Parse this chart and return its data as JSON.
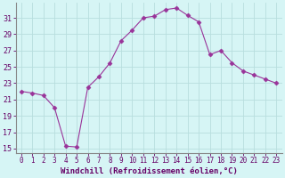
{
  "x": [
    0,
    1,
    2,
    3,
    4,
    5,
    6,
    7,
    8,
    9,
    10,
    11,
    12,
    13,
    14,
    15,
    16,
    17,
    18,
    19,
    20,
    21,
    22,
    23
  ],
  "y": [
    22.0,
    21.8,
    21.5,
    20.0,
    15.3,
    15.2,
    22.5,
    23.8,
    25.5,
    28.2,
    29.5,
    31.0,
    31.2,
    32.0,
    32.2,
    31.3,
    30.5,
    26.5,
    27.0,
    25.5,
    24.5,
    24.0,
    23.5,
    23.0
  ],
  "line_color": "#993399",
  "marker": "D",
  "marker_size": 2.5,
  "bg_color": "#d6f5f5",
  "grid_color": "#b8dede",
  "xlabel": "Windchill (Refroidissement éolien,°C)",
  "xlim": [
    -0.5,
    23.5
  ],
  "ylim": [
    14.5,
    32.8
  ],
  "yticks": [
    15,
    17,
    19,
    21,
    23,
    25,
    27,
    29,
    31
  ],
  "xtick_labels": [
    "0",
    "1",
    "2",
    "3",
    "4",
    "5",
    "6",
    "7",
    "8",
    "9",
    "10",
    "11",
    "12",
    "13",
    "14",
    "15",
    "16",
    "17",
    "18",
    "19",
    "20",
    "21",
    "22",
    "23"
  ],
  "tick_color": "#660066",
  "spine_color": "#888888",
  "xlabel_color": "#660066"
}
